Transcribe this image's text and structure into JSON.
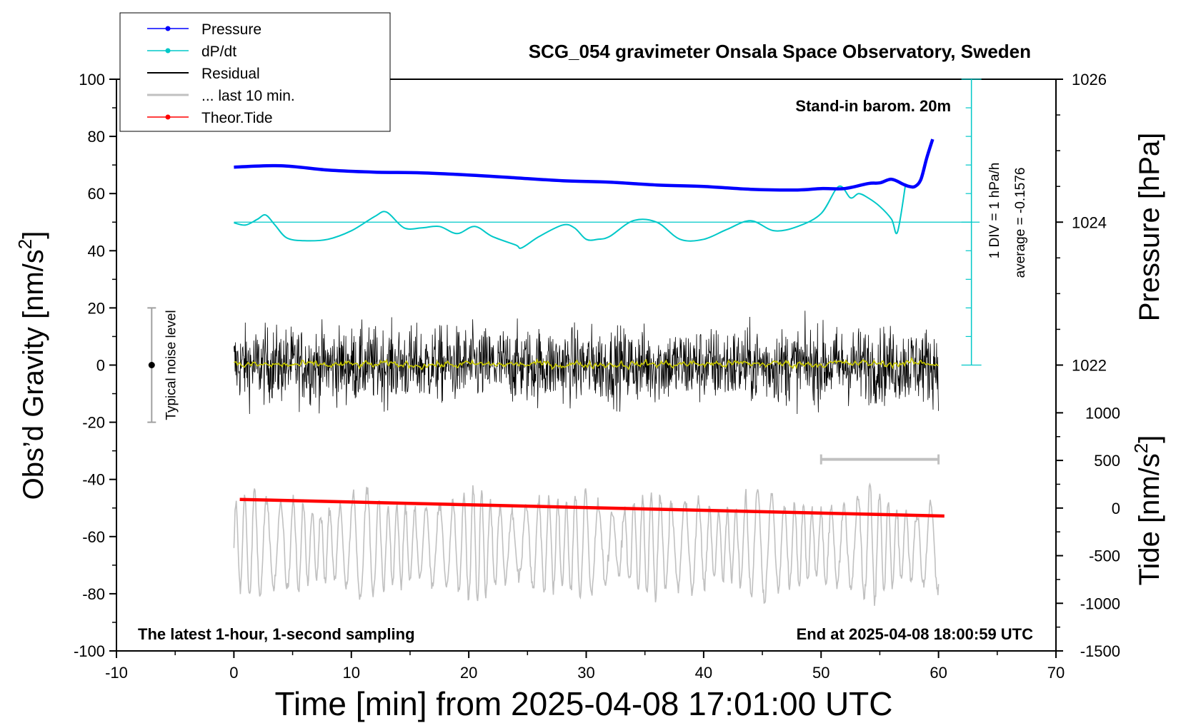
{
  "chart_data": {
    "type": "line",
    "title": "SCG_054 gravimeter Onsala Space Observatory, Sweden",
    "xlabel": "Time [min] from 2025-04-08 17:01:00 UTC",
    "ylabel": "Obs’d Gravity [nm/s²]",
    "ylabel_main": "Obs’d Gravity [nm/s",
    "ylabel_sup": "2",
    "ylabel_end": "]",
    "xlim": [
      -10,
      70
    ],
    "ylim": [
      -100,
      100
    ],
    "x_ticks": [
      "-10",
      "0",
      "10",
      "20",
      "30",
      "40",
      "50",
      "60",
      "70"
    ],
    "y_ticks": [
      "100",
      "80",
      "60",
      "40",
      "20",
      "0",
      "-20",
      "-40",
      "-60",
      "-80",
      "-100"
    ],
    "pressure_axis": {
      "label": "Pressure [hPa]",
      "ticks": [
        "1026",
        "1024",
        "1022"
      ],
      "tick_values": [
        1026,
        1024,
        1022
      ],
      "gravity_value_of_1024": 50,
      "gravity_units_per_hPa": 25
    },
    "tide_axis": {
      "label": "Tide [nm/s²]",
      "label_main": "Tide [nm/s",
      "label_sup": "2",
      "label_end": "]",
      "ticks": [
        "1000",
        "500",
        "0",
        "-500",
        "-1000",
        "-1500"
      ],
      "tick_values": [
        1000,
        500,
        0,
        -500,
        -1000,
        -1500
      ],
      "gravity_range_top": -16.7,
      "gravity_range_bottom": -100
    },
    "legend": [
      {
        "name": "Pressure",
        "color": "#0000ff",
        "marker": true
      },
      {
        "name": "dP/dt",
        "color": "#00c8c8",
        "marker": true
      },
      {
        "name": "Residual",
        "color": "#000000",
        "marker": false
      },
      {
        "name": "... last 10 min.",
        "color": "#c0c0c0",
        "marker": false
      },
      {
        "name": "Theor.Tide",
        "color": "#ff0000",
        "marker": true
      }
    ],
    "series": [
      {
        "name": "Pressure",
        "color": "#0000ff",
        "x": [
          0,
          4,
          8,
          12,
          16,
          20,
          24,
          28,
          32,
          36,
          40,
          44,
          48,
          50,
          52,
          54,
          55,
          56,
          57,
          57.5,
          58,
          58.5,
          59,
          59.5
        ],
        "y": [
          1024.77,
          1024.79,
          1024.73,
          1024.7,
          1024.69,
          1024.66,
          1024.62,
          1024.58,
          1024.56,
          1024.52,
          1024.5,
          1024.46,
          1024.45,
          1024.47,
          1024.47,
          1024.54,
          1024.55,
          1024.6,
          1024.53,
          1024.5,
          1024.5,
          1024.6,
          1024.9,
          1025.16
        ]
      },
      {
        "name": "dP/dt",
        "color": "#00c8c8",
        "x": [
          0,
          1,
          2,
          2.7,
          3.5,
          4.5,
          6,
          8,
          10,
          12,
          13,
          14.5,
          16,
          17.5,
          19,
          20.5,
          22,
          24,
          24.5,
          26,
          28,
          29,
          30,
          31,
          32,
          34,
          36,
          38,
          40,
          42,
          44,
          46,
          48,
          50,
          51.5,
          52.5,
          53.2,
          54,
          55,
          56,
          56.5,
          57.2
        ],
        "y": [
          49.8,
          49,
          51,
          52.5,
          49,
          44.5,
          43.5,
          44,
          47,
          52,
          53.5,
          48,
          48,
          48.5,
          46,
          48.5,
          45,
          42,
          41,
          45,
          49,
          48,
          44,
          44,
          45,
          50.5,
          50,
          44,
          44,
          47.5,
          50.5,
          47,
          48.5,
          53,
          62.5,
          58.5,
          60,
          58.5,
          55.5,
          51,
          46.5,
          63.5
        ]
      },
      {
        "name": "Theor.Tide",
        "color": "#ff0000",
        "x": [
          0.5,
          60.5
        ],
        "y": [
          -47,
          -52.8
        ]
      }
    ],
    "residual": {
      "x_range": [
        0,
        60
      ],
      "mean": 0,
      "envelope": 20,
      "color": "#000000"
    },
    "residual_mean_line": {
      "color": "#c8c800"
    },
    "last_10_min_bracket": {
      "x_range": [
        50,
        60
      ],
      "y": -33,
      "color": "#c0c0c0"
    },
    "last_10_min_trace": {
      "x_range": [
        0,
        60
      ],
      "center_y": -63,
      "amplitude": 20,
      "color": "#c0c0c0"
    },
    "noise_bar": {
      "x": -7,
      "y": 0,
      "low": -20,
      "high": 20,
      "label": "Typical noise level"
    },
    "annotations": {
      "barometer": "Stand-in barom. 20m",
      "sampling": "The latest 1-hour, 1-second sampling",
      "end_time": "End at 2025-04-08 18:00:59 UTC",
      "div_scale": "1 DIV = 1 hPa/h",
      "average": "average = -0.1576"
    }
  }
}
